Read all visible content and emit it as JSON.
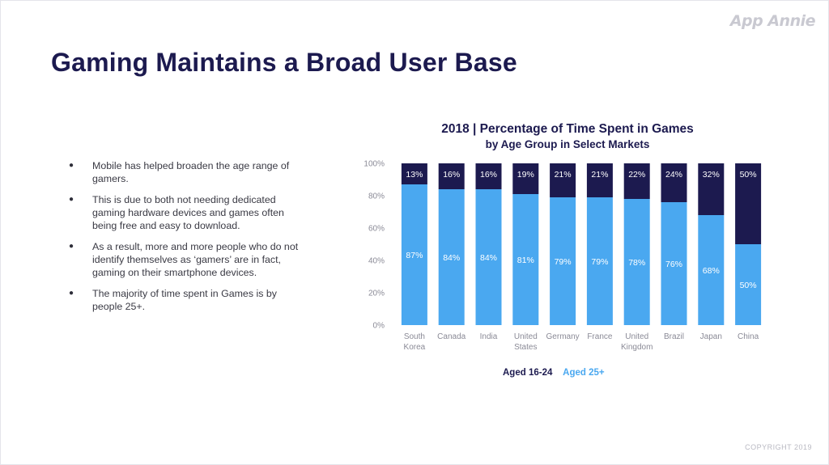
{
  "brand": "App Annie",
  "title": "Gaming Maintains a Broad User Base",
  "bullets": [
    "Mobile has helped broaden the age range of gamers.",
    "This is due to both not needing dedicated gaming hardware devices and games often being free and easy to download.",
    "As a result, more and more people who do not identify themselves as ‘gamers’ are in fact, gaming on their smartphone devices.",
    "The majority of time spent in Games is by people 25+."
  ],
  "bullet_symbol": "●",
  "copyright": "COPYRIGHT 2019",
  "colors": {
    "dark_navy": "#1c1a4f",
    "light_blue": "#4aa8f0",
    "axis_text": "#8a8a96"
  },
  "chart_data": {
    "type": "bar",
    "stacked": true,
    "title": "2018 | Percentage of Time Spent in Games",
    "subtitle": "by Age Group in Select Markets",
    "categories": [
      "South Korea",
      "Canada",
      "India",
      "United States",
      "Germany",
      "France",
      "United Kingdom",
      "Brazil",
      "Japan",
      "China"
    ],
    "category_lines": [
      [
        "South",
        "Korea"
      ],
      [
        "Canada"
      ],
      [
        "India"
      ],
      [
        "United",
        "States"
      ],
      [
        "Germany"
      ],
      [
        "France"
      ],
      [
        "United",
        "Kingdom"
      ],
      [
        "Brazil"
      ],
      [
        "Japan"
      ],
      [
        "China"
      ]
    ],
    "series": [
      {
        "name": "Aged 25+",
        "values": [
          87,
          84,
          84,
          81,
          79,
          79,
          78,
          76,
          68,
          50
        ],
        "color": "#4aa8f0"
      },
      {
        "name": "Aged 16-24",
        "values": [
          13,
          16,
          16,
          19,
          21,
          21,
          22,
          24,
          32,
          50
        ],
        "color": "#1c1a4f"
      }
    ],
    "ylim": [
      0,
      100
    ],
    "yticks": [
      "0%",
      "20%",
      "40%",
      "60%",
      "80%",
      "100%"
    ],
    "value_suffix": "%",
    "legend": [
      "Aged 16-24",
      "Aged 25+"
    ],
    "legend_position": "bottom",
    "watermark": "App Annie"
  }
}
